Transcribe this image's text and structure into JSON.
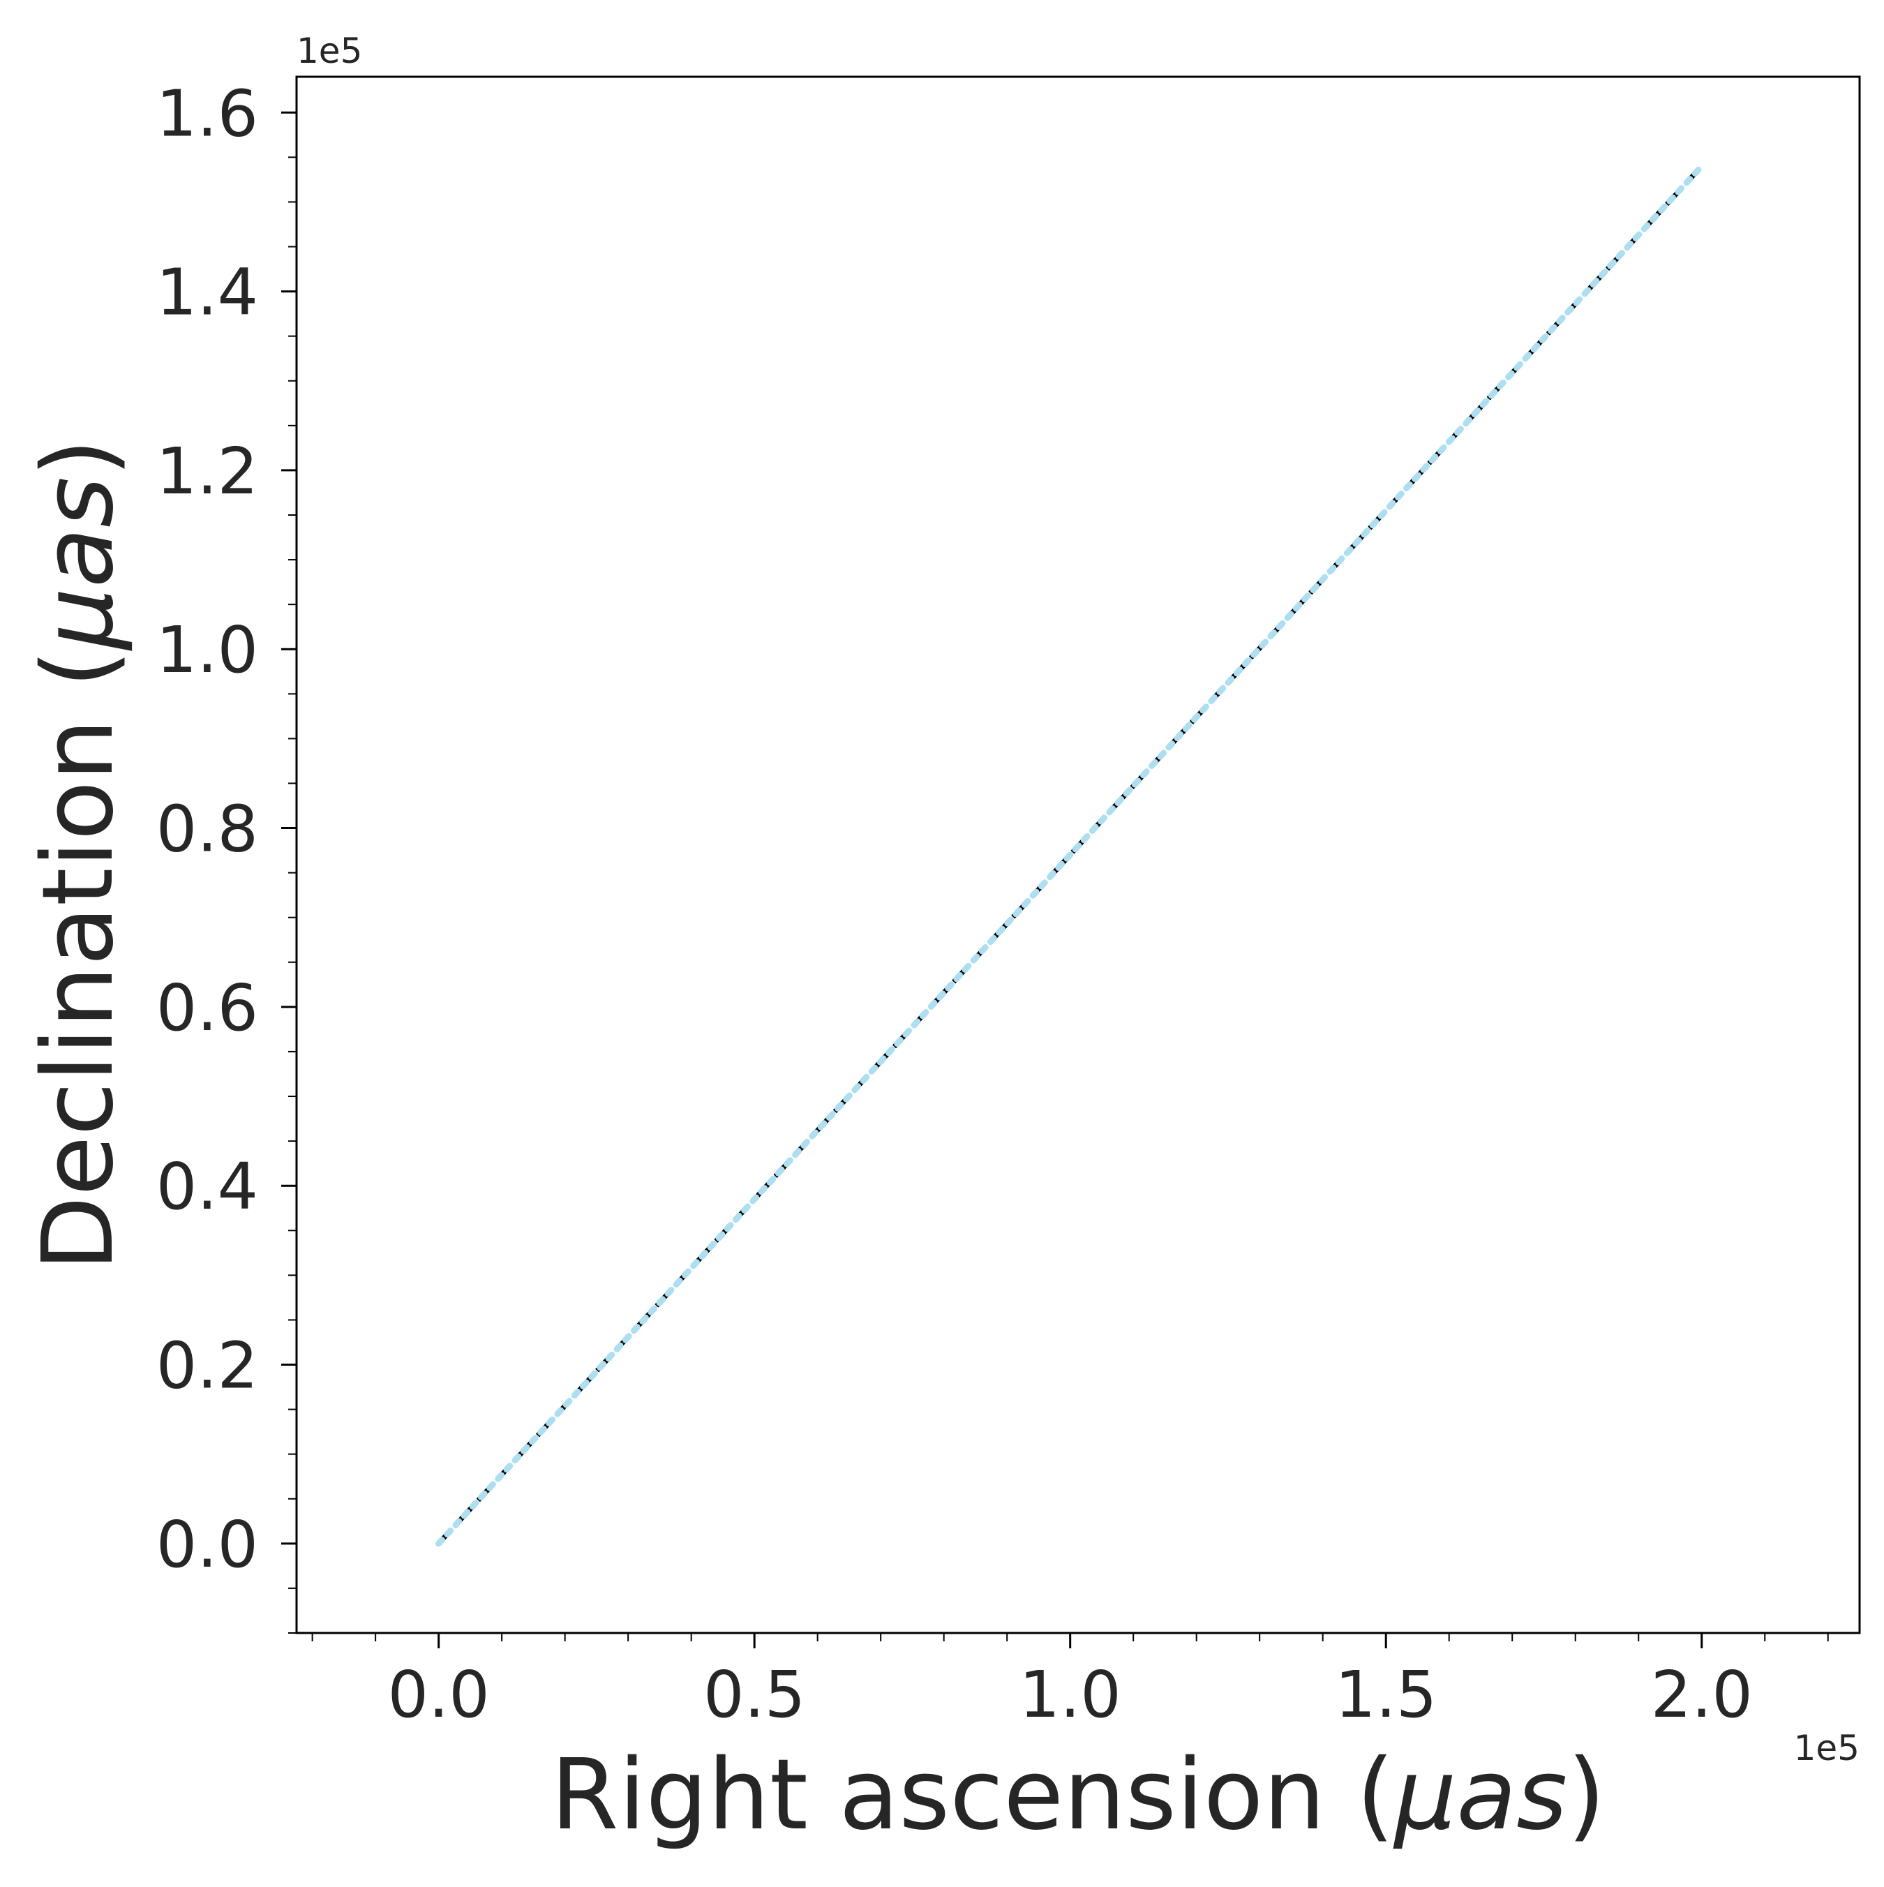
{
  "chart_data": {
    "type": "line",
    "title": "",
    "xlabel": "Right ascension (",
    "xlabel_unit": "μas",
    "ylabel": "Declination (",
    "ylabel_unit": "μas",
    "x_offset_label": "1e5",
    "y_offset_label": "1e5",
    "x_scale_factor": 100000,
    "y_scale_factor": 100000,
    "xlim": [
      -0.225,
      2.25
    ],
    "ylim": [
      -0.1,
      1.64
    ],
    "x_ticks": [
      0.0,
      0.5,
      1.0,
      1.5,
      2.0
    ],
    "x_tick_labels": [
      "0.0",
      "0.5",
      "1.0",
      "1.5",
      "2.0"
    ],
    "y_ticks": [
      0.0,
      0.2,
      0.4,
      0.6,
      0.8,
      1.0,
      1.2,
      1.4,
      1.6
    ],
    "y_tick_labels": [
      "0.0",
      "0.2",
      "0.4",
      "0.6",
      "0.8",
      "1.0",
      "1.2",
      "1.4",
      "1.6"
    ],
    "x_minor_step": 0.1,
    "y_minor_step": 0.05,
    "grid": false,
    "series": [
      {
        "style": "dashed",
        "color": "#000000",
        "x": [
          0.0,
          2.0
        ],
        "y": [
          0.0,
          1.54
        ]
      },
      {
        "style": "dotted",
        "color": "#ADDFF2",
        "x": [
          0.0,
          0.1,
          0.2,
          0.3,
          0.4,
          0.5,
          0.6,
          0.7,
          0.8,
          0.9,
          1.0,
          1.1,
          1.2,
          1.3,
          1.4,
          1.5,
          1.6,
          1.7,
          1.8,
          1.9,
          2.0
        ],
        "y": [
          0.0,
          0.077,
          0.154,
          0.231,
          0.308,
          0.385,
          0.462,
          0.539,
          0.616,
          0.693,
          0.77,
          0.847,
          0.924,
          1.001,
          1.078,
          1.155,
          1.232,
          1.309,
          1.386,
          1.463,
          1.54
        ]
      }
    ]
  }
}
